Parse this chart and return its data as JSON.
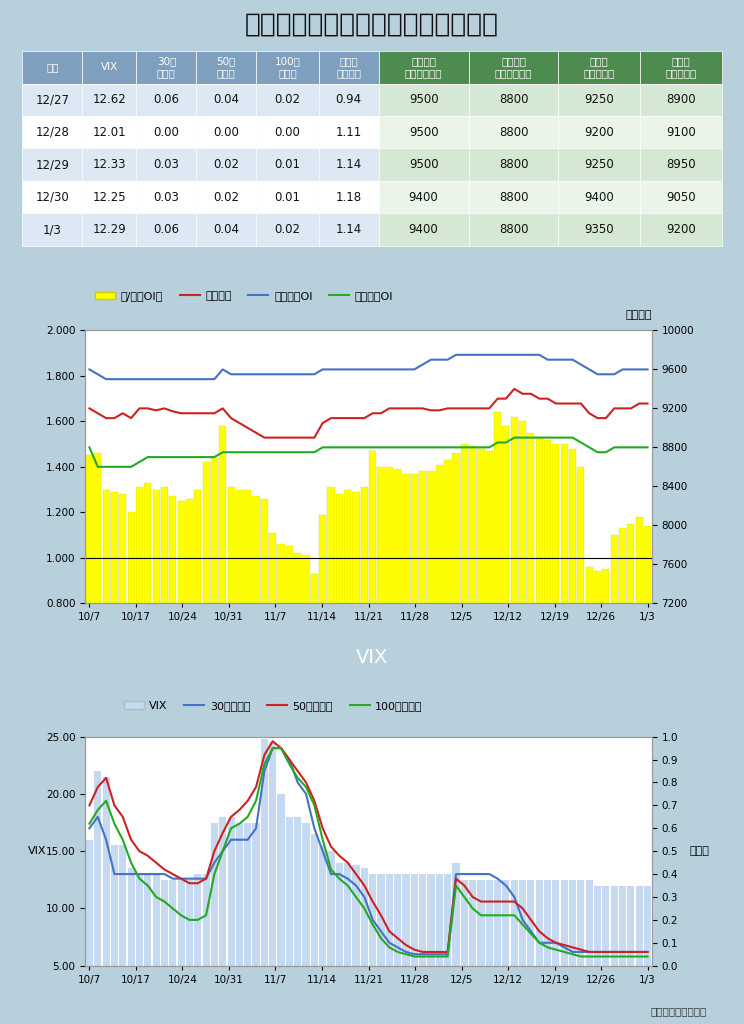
{
  "title": "選擇權波動率指數與賣買權未平倉比",
  "table": {
    "header_texts": [
      "日期",
      "VIX",
      "30日\n百分位",
      "50日\n百分位",
      "100日\n百分位",
      "賣買權\n未平倉比",
      "買權最大\n未平倉履約價",
      "賣權最大\n未平倉履約價",
      "週買權\n最大履約價",
      "週賣權\n最大履約價"
    ],
    "rows": [
      [
        "12/27",
        "12.62",
        "0.06",
        "0.04",
        "0.02",
        "0.94",
        "9500",
        "8800",
        "9250",
        "8900"
      ],
      [
        "12/28",
        "12.01",
        "0.00",
        "0.00",
        "0.00",
        "1.11",
        "9500",
        "8800",
        "9200",
        "9100"
      ],
      [
        "12/29",
        "12.33",
        "0.03",
        "0.02",
        "0.01",
        "1.14",
        "9500",
        "8800",
        "9250",
        "8950"
      ],
      [
        "12/30",
        "12.25",
        "0.03",
        "0.02",
        "0.01",
        "1.18",
        "9400",
        "8800",
        "9400",
        "9050"
      ],
      [
        "1/3",
        "12.29",
        "0.06",
        "0.04",
        "0.02",
        "1.14",
        "9400",
        "8800",
        "9350",
        "9200"
      ]
    ],
    "header_bg_left": "#7f9fbe",
    "header_bg_right": "#4e8b4e",
    "header_text_color": "#ffffff",
    "row_bg_colors": [
      [
        "#dce9f5",
        "#dce9f5",
        "#dce9f5",
        "#dce9f5",
        "#dce9f5",
        "#dce9f5",
        "#d5e8d4",
        "#d5e8d4",
        "#d5e8d4",
        "#d5e8d4"
      ],
      [
        "#ffffff",
        "#ffffff",
        "#ffffff",
        "#ffffff",
        "#ffffff",
        "#ffffff",
        "#eaf4e9",
        "#eaf4e9",
        "#eaf4e9",
        "#eaf4e9"
      ],
      [
        "#dce9f5",
        "#dce9f5",
        "#dce9f5",
        "#dce9f5",
        "#dce9f5",
        "#dce9f5",
        "#d5e8d4",
        "#d5e8d4",
        "#d5e8d4",
        "#d5e8d4"
      ],
      [
        "#ffffff",
        "#ffffff",
        "#ffffff",
        "#ffffff",
        "#ffffff",
        "#ffffff",
        "#eaf4e9",
        "#eaf4e9",
        "#eaf4e9",
        "#eaf4e9"
      ],
      [
        "#dce9f5",
        "#dce9f5",
        "#dce9f5",
        "#dce9f5",
        "#dce9f5",
        "#dce9f5",
        "#d5e8d4",
        "#d5e8d4",
        "#d5e8d4",
        "#d5e8d4"
      ]
    ]
  },
  "chart1": {
    "xlabel_ticks": [
      "10/7",
      "10/17",
      "10/24",
      "10/31",
      "11/7",
      "11/14",
      "11/21",
      "11/28",
      "12/5",
      "12/12",
      "12/19",
      "12/26",
      "1/3"
    ],
    "yleft_min": 0.8,
    "yleft_max": 2.0,
    "yright_min": 7200,
    "yright_max": 10000,
    "yleft_ticks": [
      0.8,
      1.0,
      1.2,
      1.4,
      1.6,
      1.8,
      2.0
    ],
    "yright_ticks": [
      7200,
      7600,
      8000,
      8400,
      8800,
      9200,
      9600,
      10000
    ],
    "bar_color": "#ffff00",
    "bar_edge_color": "#cccc00",
    "bar_values": [
      1.45,
      1.46,
      1.3,
      1.29,
      1.28,
      1.2,
      1.31,
      1.33,
      1.3,
      1.31,
      1.27,
      1.25,
      1.26,
      1.3,
      1.42,
      1.44,
      1.58,
      1.31,
      1.3,
      1.3,
      1.27,
      1.26,
      1.11,
      1.06,
      1.05,
      1.02,
      1.01,
      0.93,
      1.19,
      1.31,
      1.28,
      1.3,
      1.29,
      1.31,
      1.47,
      1.4,
      1.4,
      1.39,
      1.37,
      1.37,
      1.38,
      1.38,
      1.41,
      1.43,
      1.46,
      1.5,
      1.49,
      1.48,
      1.47,
      1.64,
      1.58,
      1.62,
      1.6,
      1.55,
      1.53,
      1.52,
      1.5,
      1.5,
      1.48,
      1.4,
      0.96,
      0.94,
      0.95,
      1.1,
      1.13,
      1.15,
      1.18,
      1.14
    ],
    "line_red_values": [
      9200,
      9150,
      9100,
      9100,
      9150,
      9100,
      9200,
      9200,
      9180,
      9200,
      9170,
      9150,
      9150,
      9150,
      9150,
      9150,
      9200,
      9100,
      9050,
      9000,
      8950,
      8900,
      8900,
      8900,
      8900,
      8900,
      8900,
      8900,
      9050,
      9100,
      9100,
      9100,
      9100,
      9100,
      9150,
      9150,
      9200,
      9200,
      9200,
      9200,
      9200,
      9180,
      9180,
      9200,
      9200,
      9200,
      9200,
      9200,
      9200,
      9300,
      9300,
      9400,
      9350,
      9350,
      9300,
      9300,
      9250,
      9250,
      9250,
      9250,
      9150,
      9100,
      9100,
      9200,
      9200,
      9200,
      9250,
      9250
    ],
    "line_blue_values": [
      9600,
      9550,
      9500,
      9500,
      9500,
      9500,
      9500,
      9500,
      9500,
      9500,
      9500,
      9500,
      9500,
      9500,
      9500,
      9500,
      9600,
      9550,
      9550,
      9550,
      9550,
      9550,
      9550,
      9550,
      9550,
      9550,
      9550,
      9550,
      9600,
      9600,
      9600,
      9600,
      9600,
      9600,
      9600,
      9600,
      9600,
      9600,
      9600,
      9600,
      9650,
      9700,
      9700,
      9700,
      9750,
      9750,
      9750,
      9750,
      9750,
      9750,
      9750,
      9750,
      9750,
      9750,
      9750,
      9700,
      9700,
      9700,
      9700,
      9650,
      9600,
      9550,
      9550,
      9550,
      9600,
      9600,
      9600,
      9600
    ],
    "line_green_values": [
      8800,
      8600,
      8600,
      8600,
      8600,
      8600,
      8650,
      8700,
      8700,
      8700,
      8700,
      8700,
      8700,
      8700,
      8700,
      8700,
      8750,
      8750,
      8750,
      8750,
      8750,
      8750,
      8750,
      8750,
      8750,
      8750,
      8750,
      8750,
      8800,
      8800,
      8800,
      8800,
      8800,
      8800,
      8800,
      8800,
      8800,
      8800,
      8800,
      8800,
      8800,
      8800,
      8800,
      8800,
      8800,
      8800,
      8800,
      8800,
      8800,
      8850,
      8850,
      8900,
      8900,
      8900,
      8900,
      8900,
      8900,
      8900,
      8900,
      8850,
      8800,
      8750,
      8750,
      8800,
      8800,
      8800,
      8800,
      8800
    ],
    "legend_labels": [
      "賣/買權OI比",
      "加權指數",
      "買權最大OI",
      "賣權最大OI"
    ],
    "ylabel_right": "加權指數",
    "panel_bg": "#e8f4f8"
  },
  "chart2": {
    "title": "VIX",
    "xlabel_ticks": [
      "10/7",
      "10/17",
      "10/24",
      "10/31",
      "11/7",
      "11/14",
      "11/21",
      "11/28",
      "12/5",
      "12/12",
      "12/19",
      "12/26",
      "1/3"
    ],
    "yleft_min": 5.0,
    "yleft_max": 25.0,
    "yright_min": 0,
    "yright_max": 1.0,
    "yleft_ticks": [
      5.0,
      10.0,
      15.0,
      20.0,
      25.0
    ],
    "yright_ticks": [
      0,
      0.1,
      0.2,
      0.3,
      0.4,
      0.5,
      0.6,
      0.7,
      0.8,
      0.9,
      1.0
    ],
    "bar_color": "#c5d9f1",
    "bar_values": [
      16.0,
      22.0,
      21.5,
      15.5,
      15.5,
      13.5,
      13.0,
      13.0,
      13.0,
      12.5,
      12.5,
      12.5,
      12.5,
      13.0,
      13.0,
      17.5,
      18.0,
      18.0,
      17.5,
      17.5,
      17.5,
      24.8,
      24.5,
      20.0,
      18.0,
      18.0,
      17.5,
      16.5,
      15.5,
      15.0,
      14.0,
      14.0,
      13.8,
      13.5,
      13.0,
      13.0,
      13.0,
      13.0,
      13.0,
      13.0,
      13.0,
      13.0,
      13.0,
      13.0,
      14.0,
      12.5,
      12.5,
      12.5,
      12.5,
      12.5,
      12.5,
      12.5,
      12.5,
      12.5,
      12.5,
      12.5,
      12.5,
      12.5,
      12.5,
      12.5,
      12.5,
      12.0,
      12.0,
      12.0,
      12.0,
      12.0,
      12.0,
      12.0
    ],
    "line_blue_values": [
      0.6,
      0.65,
      0.55,
      0.4,
      0.4,
      0.4,
      0.4,
      0.4,
      0.4,
      0.4,
      0.38,
      0.38,
      0.38,
      0.38,
      0.38,
      0.45,
      0.5,
      0.55,
      0.55,
      0.55,
      0.6,
      0.85,
      0.95,
      0.95,
      0.9,
      0.8,
      0.75,
      0.6,
      0.5,
      0.4,
      0.4,
      0.38,
      0.35,
      0.3,
      0.2,
      0.15,
      0.1,
      0.08,
      0.06,
      0.05,
      0.05,
      0.05,
      0.05,
      0.05,
      0.4,
      0.4,
      0.4,
      0.4,
      0.4,
      0.38,
      0.35,
      0.3,
      0.2,
      0.15,
      0.1,
      0.1,
      0.1,
      0.08,
      0.06,
      0.06,
      0.06,
      0.06,
      0.06,
      0.06,
      0.06,
      0.06,
      0.06,
      0.06
    ],
    "line_red_values": [
      0.7,
      0.78,
      0.82,
      0.7,
      0.65,
      0.55,
      0.5,
      0.48,
      0.45,
      0.42,
      0.4,
      0.38,
      0.36,
      0.36,
      0.38,
      0.5,
      0.58,
      0.65,
      0.68,
      0.72,
      0.78,
      0.92,
      0.98,
      0.95,
      0.9,
      0.85,
      0.8,
      0.72,
      0.6,
      0.52,
      0.48,
      0.45,
      0.4,
      0.35,
      0.28,
      0.22,
      0.15,
      0.12,
      0.09,
      0.07,
      0.06,
      0.06,
      0.06,
      0.06,
      0.38,
      0.35,
      0.3,
      0.28,
      0.28,
      0.28,
      0.28,
      0.28,
      0.25,
      0.2,
      0.15,
      0.12,
      0.1,
      0.09,
      0.08,
      0.07,
      0.06,
      0.06,
      0.06,
      0.06,
      0.06,
      0.06,
      0.06,
      0.06
    ],
    "line_green_values": [
      0.62,
      0.68,
      0.72,
      0.62,
      0.55,
      0.45,
      0.38,
      0.35,
      0.3,
      0.28,
      0.25,
      0.22,
      0.2,
      0.2,
      0.22,
      0.4,
      0.5,
      0.6,
      0.62,
      0.65,
      0.72,
      0.88,
      0.95,
      0.95,
      0.88,
      0.82,
      0.78,
      0.7,
      0.55,
      0.42,
      0.38,
      0.35,
      0.3,
      0.25,
      0.18,
      0.12,
      0.08,
      0.06,
      0.05,
      0.04,
      0.04,
      0.04,
      0.04,
      0.04,
      0.35,
      0.3,
      0.25,
      0.22,
      0.22,
      0.22,
      0.22,
      0.22,
      0.18,
      0.14,
      0.1,
      0.08,
      0.07,
      0.06,
      0.05,
      0.04,
      0.04,
      0.04,
      0.04,
      0.04,
      0.04,
      0.04,
      0.04,
      0.04
    ],
    "legend_labels": [
      "VIX",
      "30日百分位",
      "50日百分位",
      "100日百分位"
    ],
    "ylabel_left": "VIX",
    "ylabel_right": "百分位",
    "title_bg_color": "#7ab8cc",
    "panel_bg": "#e8f4f8"
  },
  "outer_bg_color": "#b8d0dc",
  "footer_text": "統一期貨研究科製作"
}
